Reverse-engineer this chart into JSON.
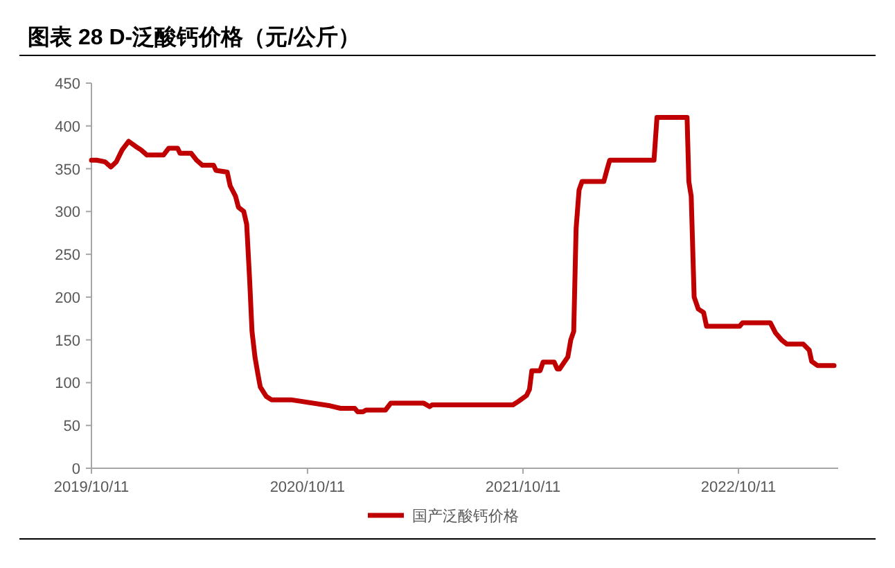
{
  "chart_data": {
    "type": "line",
    "title": "图表 28 D-泛酸钙价格（元/公斤）",
    "x": [
      "2019-10-11",
      "2019-10-20",
      "2019-11-03",
      "2019-11-13",
      "2019-11-22",
      "2019-12-02",
      "2019-12-13",
      "2019-12-25",
      "2020-01-03",
      "2020-01-13",
      "2020-02-10",
      "2020-02-19",
      "2020-03-05",
      "2020-03-09",
      "2020-03-28",
      "2020-04-06",
      "2020-04-16",
      "2020-05-05",
      "2020-05-09",
      "2020-05-28",
      "2020-06-02",
      "2020-06-11",
      "2020-06-16",
      "2020-06-25",
      "2020-06-30",
      "2020-07-05",
      "2020-07-09",
      "2020-07-14",
      "2020-07-19",
      "2020-07-23",
      "2020-08-02",
      "2020-08-11",
      "2020-09-13",
      "2020-11-18",
      "2020-12-06",
      "2020-12-30",
      "2021-01-04",
      "2021-01-13",
      "2021-01-18",
      "2021-02-20",
      "2021-03-01",
      "2021-04-26",
      "2021-05-06",
      "2021-05-10",
      "2021-09-24",
      "2021-10-03",
      "2021-10-17",
      "2021-10-22",
      "2021-10-26",
      "2021-11-09",
      "2021-11-14",
      "2021-12-03",
      "2021-12-08",
      "2021-12-12",
      "2021-12-22",
      "2021-12-26",
      "2021-12-31",
      "2022-01-05",
      "2022-01-09",
      "2022-01-14",
      "2022-01-19",
      "2022-02-25",
      "2022-03-02",
      "2022-03-07",
      "2022-05-21",
      "2022-05-26",
      "2022-07-16",
      "2022-07-19",
      "2022-07-23",
      "2022-07-28",
      "2022-08-04",
      "2022-08-13",
      "2022-08-18",
      "2022-10-13",
      "2022-10-18",
      "2022-12-04",
      "2022-12-13",
      "2022-12-23",
      "2023-01-01",
      "2023-01-29",
      "2023-02-08",
      "2023-02-12",
      "2023-02-22",
      "2023-03-22"
    ],
    "series": [
      {
        "name": "国产泛酸钙价格",
        "color": "#c00000",
        "values": [
          360,
          360,
          358,
          352,
          358,
          372,
          382,
          376,
          372,
          366,
          366,
          374,
          374,
          368,
          368,
          360,
          354,
          354,
          348,
          346,
          330,
          318,
          305,
          300,
          285,
          220,
          160,
          130,
          110,
          95,
          84,
          80,
          80,
          73,
          70,
          70,
          66,
          66,
          68,
          68,
          76,
          76,
          72,
          74,
          74,
          78,
          85,
          92,
          114,
          114,
          124,
          124,
          116,
          116,
          126,
          130,
          150,
          160,
          280,
          325,
          335,
          335,
          348,
          360,
          360,
          410,
          410,
          335,
          318,
          200,
          186,
          182,
          166,
          166,
          170,
          170,
          158,
          150,
          145,
          145,
          138,
          125,
          120,
          120
        ]
      }
    ],
    "xlim": [
      "2019-10-11",
      "2023-03-29"
    ],
    "xticks": [
      {
        "value": "2019-10-11",
        "label": "2019/10/11"
      },
      {
        "value": "2020-10-11",
        "label": "2020/10/11"
      },
      {
        "value": "2021-10-11",
        "label": "2021/10/11"
      },
      {
        "value": "2022-10-11",
        "label": "2022/10/11"
      }
    ],
    "ylim": [
      0,
      450
    ],
    "yticks": [
      0,
      50,
      100,
      150,
      200,
      250,
      300,
      350,
      400,
      450
    ],
    "grid": false,
    "legend": "bottom",
    "line_style": "solid",
    "marker": "none"
  }
}
